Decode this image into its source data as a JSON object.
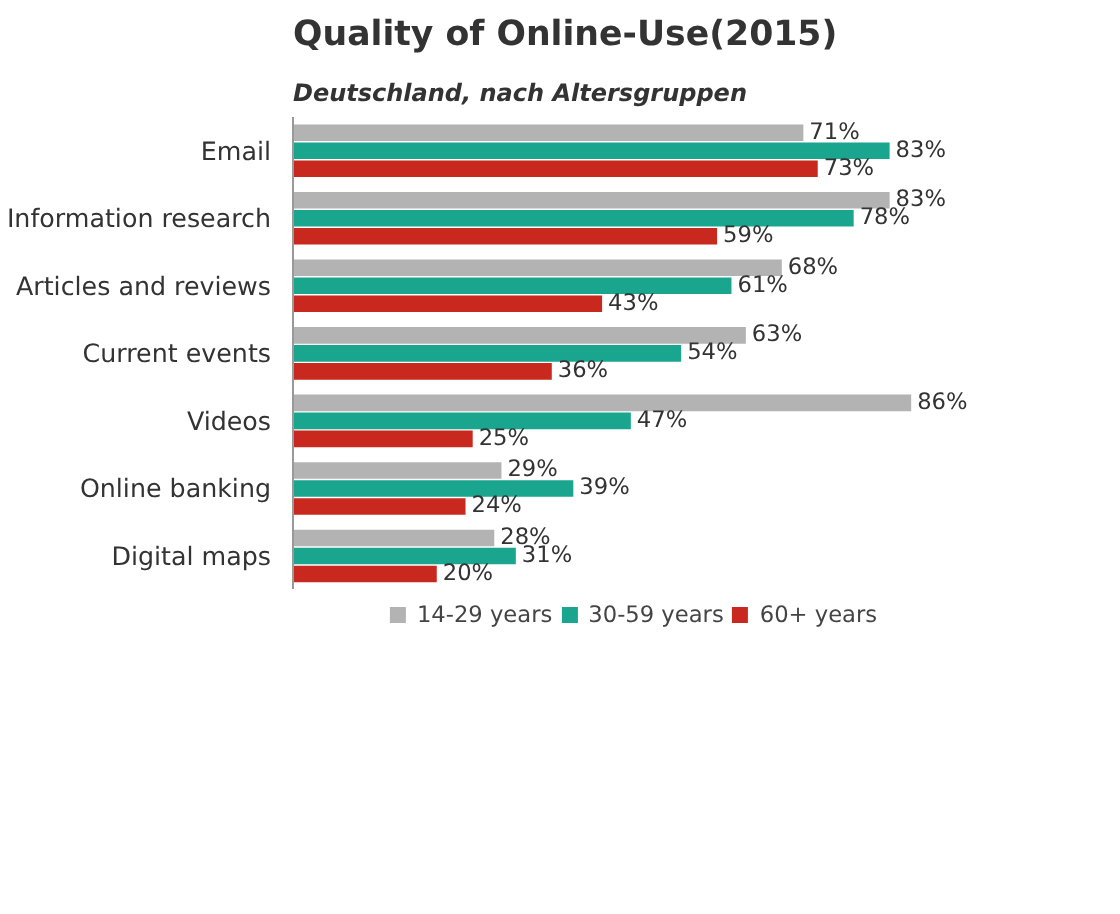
{
  "chart_data": {
    "type": "bar",
    "orientation": "horizontal",
    "title": "Quality of Online-Use(2015)",
    "subtitle": "Deutschland, nach Altersgruppen",
    "categories": [
      "Email",
      "Information research",
      "Articles and reviews",
      "Current events",
      "Videos",
      "Online banking",
      "Digital maps"
    ],
    "series": [
      {
        "name": "14-29 years",
        "color": "#b3b3b3",
        "values": [
          71,
          83,
          68,
          63,
          86,
          29,
          28
        ],
        "value_labels": [
          "71%",
          "83%",
          "68%",
          "63%",
          "86%",
          "29%",
          "28%"
        ]
      },
      {
        "name": "30-59 years",
        "color": "#1aa58f",
        "values": [
          83,
          78,
          61,
          54,
          47,
          39,
          31
        ],
        "value_labels": [
          "83%",
          "78%",
          "61%",
          "54%",
          "47%",
          "39%",
          "31%"
        ]
      },
      {
        "name": "60+ years",
        "color": "#c8281e",
        "values": [
          73,
          59,
          43,
          36,
          25,
          24,
          20
        ],
        "value_labels": [
          "73%",
          "59%",
          "43%",
          "36%",
          "25%",
          "24%",
          "20%"
        ]
      }
    ],
    "legend": "bottom",
    "grid": false,
    "tick_labels": "y"
  }
}
